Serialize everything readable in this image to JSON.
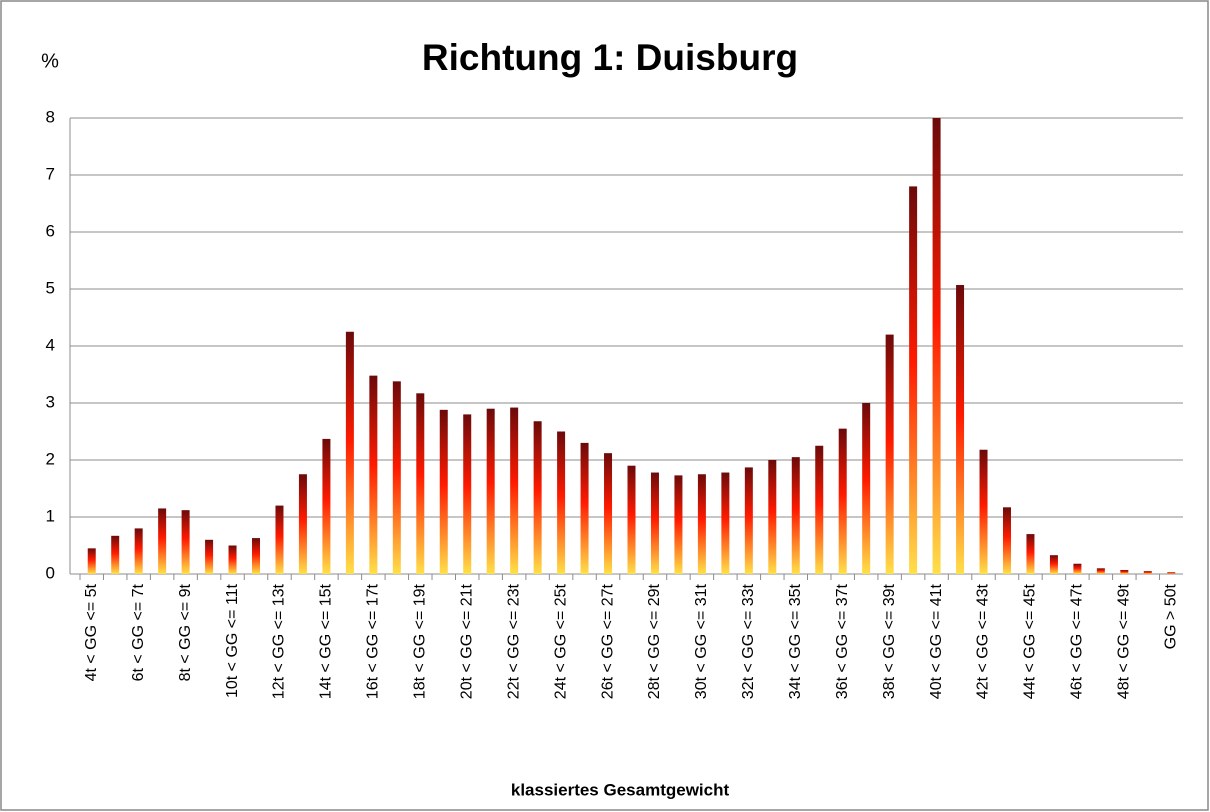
{
  "chart_data": {
    "type": "bar",
    "title": "Richtung 1: Duisburg",
    "y_label": "%",
    "x_label": "klassiertes Gesamtgewicht",
    "categories": [
      "4t < GG <= 5t",
      null,
      "6t < GG <= 7t",
      null,
      "8t < GG <= 9t",
      null,
      "10t < GG <= 11t",
      null,
      "12t < GG <= 13t",
      null,
      "14t < GG <= 15t",
      null,
      "16t < GG <= 17t",
      null,
      "18t < GG <= 19t",
      null,
      "20t < GG <= 21t",
      null,
      "22t < GG <= 23t",
      null,
      "24t < GG <= 25t",
      null,
      "26t < GG <= 27t",
      null,
      "28t < GG <= 29t",
      null,
      "30t < GG <= 31t",
      null,
      "32t < GG <= 33t",
      null,
      "34t < GG <= 35t",
      null,
      "36t < GG <= 37t",
      null,
      "38t < GG <= 39t",
      null,
      "40t < GG <= 41t",
      null,
      "42t < GG <= 43t",
      null,
      "44t < GG <= 45t",
      null,
      "46t < GG <= 47t",
      null,
      "48t < GG <= 49t",
      null,
      "GG > 50t"
    ],
    "values": [
      0.45,
      0.67,
      0.8,
      1.15,
      1.12,
      0.6,
      0.5,
      0.63,
      1.2,
      1.75,
      2.37,
      4.25,
      3.48,
      3.38,
      3.17,
      2.88,
      2.8,
      2.9,
      2.92,
      2.68,
      2.5,
      2.3,
      2.12,
      1.9,
      1.78,
      1.73,
      1.75,
      1.78,
      1.87,
      2.0,
      2.05,
      2.25,
      2.55,
      3.0,
      4.2,
      6.8,
      8.0,
      5.07,
      2.18,
      1.17,
      0.7,
      0.33,
      0.18,
      0.1,
      0.07,
      0.05,
      0.03
    ],
    "colors": [
      "#6b0a0a",
      "#ff1a00",
      "#ffe04a"
    ],
    "ylim": [
      0,
      8
    ],
    "yticks": [
      0,
      1,
      2,
      3,
      4,
      5,
      6,
      7,
      8
    ],
    "grid": true
  }
}
